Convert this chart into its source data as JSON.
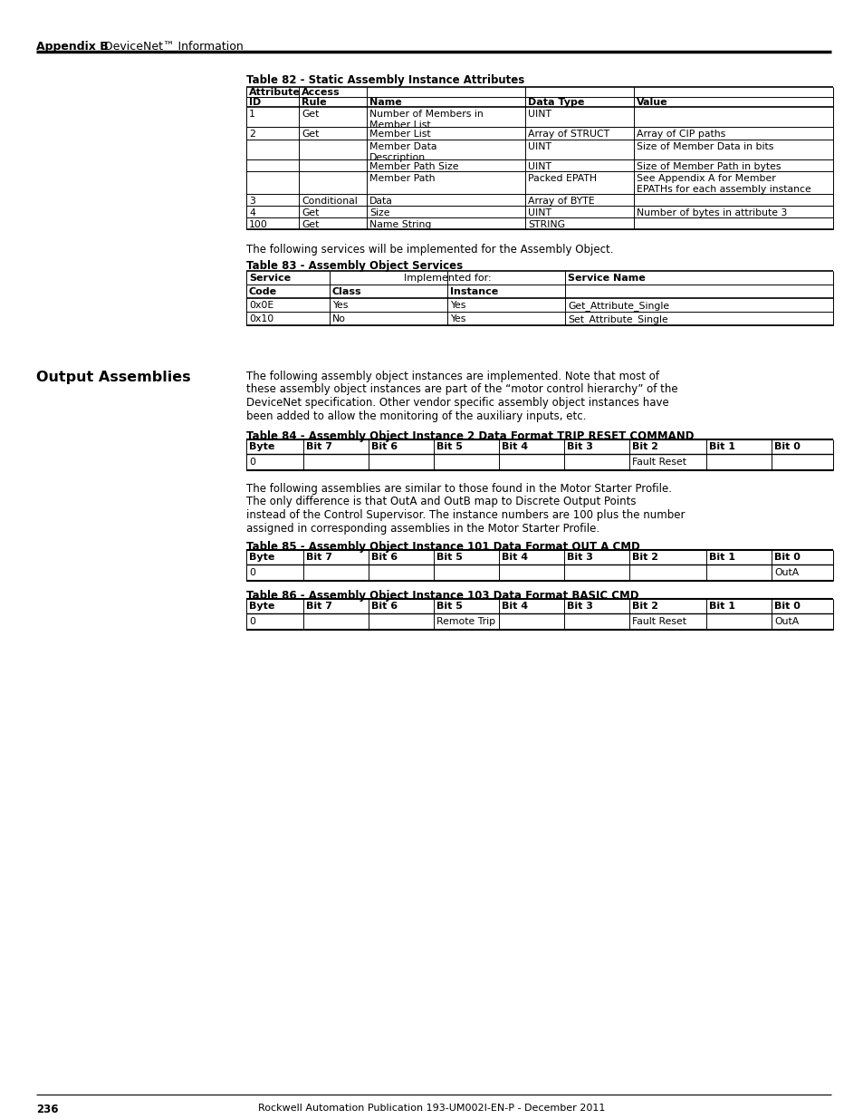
{
  "page_number": "236",
  "footer_text": "Rockwell Automation Publication 193-UM002I-EN-P - December 2011",
  "header_left_bold": "Appendix B",
  "header_left_normal": "DeviceNet™ Information",
  "section_title": "Output Assemblies",
  "table82_title": "Table 82 - Static Assembly Instance Attributes",
  "table83_title": "Table 83 - Assembly Object Services",
  "table84_title": "Table 84 - Assembly Object Instance 2 Data Format TRIP RESET COMMAND",
  "table85_title": "Table 85 - Assembly Object Instance 101 Data Format OUT A CMD",
  "table86_title": "Table 86 - Assembly Object Instance 103 Data Format BASIC CMD",
  "para1": "The following services will be implemented for the Assembly Object.",
  "para2_lines": [
    "The following assembly object instances are implemented. Note that most of",
    "these assembly object instances are part of the “motor control hierarchy” of the",
    "DeviceNet specification. Other vendor specific assembly object instances have",
    "been added to allow the monitoring of the auxiliary inputs, etc."
  ],
  "para3_lines": [
    "The following assemblies are similar to those found in the Motor Starter Profile.",
    "The only difference is that OutA and OutB map to Discrete Output Points",
    "instead of the Control Supervisor. The instance numbers are 100 plus the number",
    "assigned in corresponding assemblies in the Motor Starter Profile."
  ],
  "table82_rows": [
    [
      "1",
      "Get",
      "Number of Members in\nMember List",
      "UINT",
      ""
    ],
    [
      "2",
      "Get",
      "Member List",
      "Array of STRUCT",
      "Array of CIP paths"
    ],
    [
      "",
      "",
      "Member Data\nDescription",
      "UINT",
      "Size of Member Data in bits"
    ],
    [
      "",
      "",
      "Member Path Size",
      "UINT",
      "Size of Member Path in bytes"
    ],
    [
      "",
      "",
      "Member Path",
      "Packed EPATH",
      "See Appendix A for Member\nEPATHs for each assembly instance"
    ],
    [
      "3",
      "Conditional",
      "Data",
      "Array of BYTE",
      ""
    ],
    [
      "4",
      "Get",
      "Size",
      "UINT",
      "Number of bytes in attribute 3"
    ],
    [
      "100",
      "Get",
      "Name String",
      "STRING",
      ""
    ]
  ],
  "table83_rows": [
    [
      "0x0E",
      "Yes",
      "Yes",
      "Get_Attribute_Single"
    ],
    [
      "0x10",
      "No",
      "Yes",
      "Set_Attribute_Single"
    ]
  ],
  "table84_rows": [
    [
      "0",
      "",
      "",
      "",
      "",
      "",
      "Fault Reset",
      "",
      ""
    ]
  ],
  "table85_rows": [
    [
      "0",
      "",
      "",
      "",
      "",
      "",
      "",
      "",
      "OutA"
    ]
  ],
  "table86_rows": [
    [
      "0",
      "",
      "",
      "Remote Trip",
      "",
      "",
      "Fault Reset",
      "",
      "OutA"
    ]
  ]
}
